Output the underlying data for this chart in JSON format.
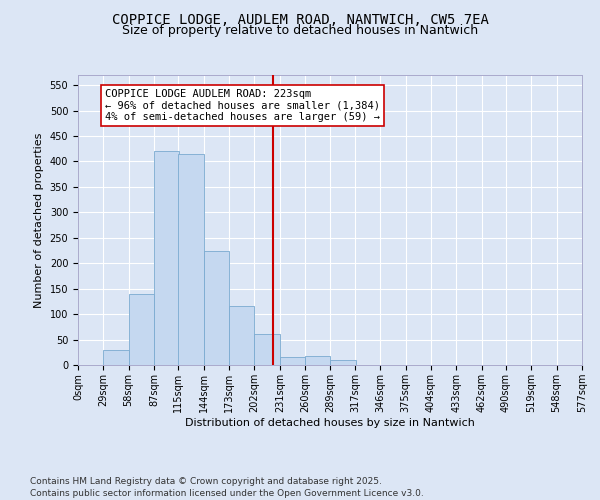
{
  "title_line1": "COPPICE LODGE, AUDLEM ROAD, NANTWICH, CW5 7EA",
  "title_line2": "Size of property relative to detached houses in Nantwich",
  "xlabel": "Distribution of detached houses by size in Nantwich",
  "ylabel": "Number of detached properties",
  "background_color": "#dce6f5",
  "bar_color": "#c5d8f0",
  "bar_edge_color": "#7aaad0",
  "bin_edges": [
    0,
    29,
    58,
    87,
    115,
    144,
    173,
    202,
    231,
    260,
    289,
    317,
    346,
    375,
    404,
    433,
    462,
    490,
    519,
    548,
    577
  ],
  "bin_labels": [
    "0sqm",
    "29sqm",
    "58sqm",
    "87sqm",
    "115sqm",
    "144sqm",
    "173sqm",
    "202sqm",
    "231sqm",
    "260sqm",
    "289sqm",
    "317sqm",
    "346sqm",
    "375sqm",
    "404sqm",
    "433sqm",
    "462sqm",
    "490sqm",
    "519sqm",
    "548sqm",
    "577sqm"
  ],
  "bar_heights": [
    0,
    30,
    140,
    420,
    415,
    225,
    115,
    60,
    15,
    18,
    10,
    0,
    0,
    0,
    0,
    0,
    0,
    0,
    0,
    0
  ],
  "marker_value": 223,
  "ylim": [
    0,
    570
  ],
  "yticks": [
    0,
    50,
    100,
    150,
    200,
    250,
    300,
    350,
    400,
    450,
    500,
    550
  ],
  "annotation_text": "COPPICE LODGE AUDLEM ROAD: 223sqm\n← 96% of detached houses are smaller (1,384)\n4% of semi-detached houses are larger (59) →",
  "annotation_color": "#cc0000",
  "footnote": "Contains HM Land Registry data © Crown copyright and database right 2025.\nContains public sector information licensed under the Open Government Licence v3.0.",
  "title_fontsize": 10,
  "subtitle_fontsize": 9,
  "axis_label_fontsize": 8,
  "tick_fontsize": 7,
  "annotation_fontsize": 7.5,
  "footnote_fontsize": 6.5
}
